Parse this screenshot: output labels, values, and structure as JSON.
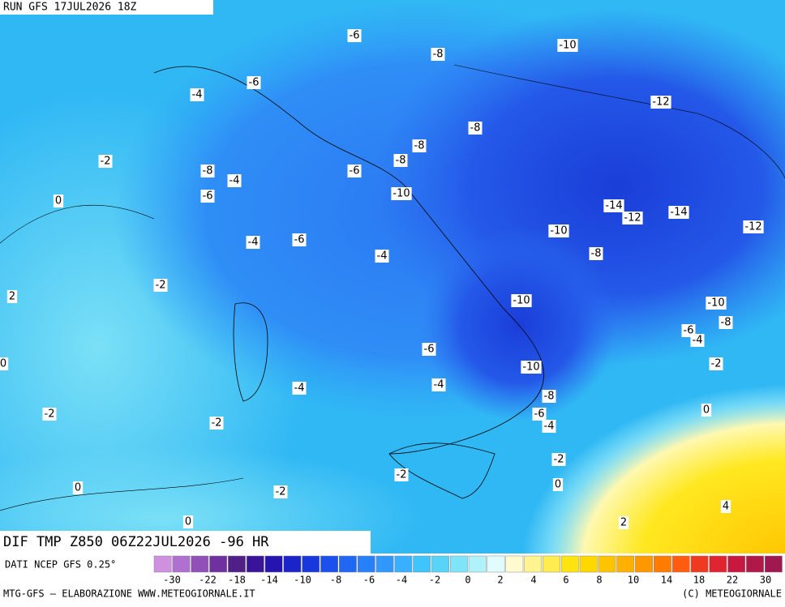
{
  "header": {
    "run": "RUN GFS 17JUL2026 18Z"
  },
  "map": {
    "contour_labels": [
      "-6",
      "-8",
      "-10",
      "-6",
      "-4",
      "-12",
      "-8",
      "-8",
      "-2",
      "-8",
      "-8",
      "-4",
      "-6",
      "-10",
      "-6",
      "0",
      "-14",
      "-12",
      "-14",
      "-12",
      "-10",
      "-4",
      "-6",
      "-8",
      "-4",
      "-2",
      "2",
      "-10",
      "-10",
      "-8",
      "-6",
      "-4",
      "-6",
      "-2",
      "0",
      "-10",
      "-4",
      "-4",
      "-8",
      "0",
      "-2",
      "-6",
      "-4",
      "-2",
      "-2",
      "-2",
      "0",
      "0",
      "-2",
      "4",
      "0",
      "2"
    ]
  },
  "footer": {
    "field": "DIF TMP Z850 06Z22JUL2026 -96 HR",
    "source": "DATI NCEP GFS 0.25°",
    "credit": "MTG-GFS — ELABORAZIONE WWW.METEOGIORNALE.IT",
    "copyright": "(C) METEOGIORNALE"
  },
  "colorbar": {
    "labels": [
      "-30",
      "-22",
      "-18",
      "-14",
      "-10",
      "-8",
      "-6",
      "-4",
      "-2",
      "0",
      "2",
      "4",
      "6",
      "8",
      "10",
      "14",
      "18",
      "22",
      "30"
    ]
  }
}
